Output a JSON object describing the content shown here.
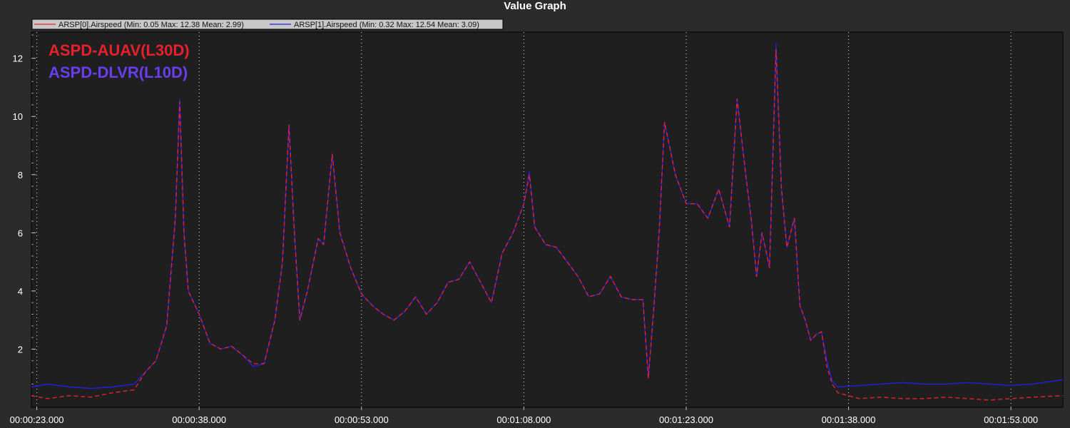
{
  "window": {
    "title": "Value Graph"
  },
  "colors": {
    "background": "#2b2b2b",
    "plot_background": "#1f1f1f",
    "legend_background": "#c8c8c8",
    "axis_text": "#ffffff",
    "grid": "#e6e6e6"
  },
  "annotations": [
    {
      "text": "ASPD-AUAV(L30D)",
      "color": "#e8202e"
    },
    {
      "text": "ASPD-DLVR(L10D)",
      "color": "#6a3df0"
    }
  ],
  "chart_data": {
    "type": "line",
    "title": "Value Graph",
    "xlabel": "",
    "ylabel": "",
    "x_unit": "seconds (elapsed time hh:mm:ss.fff)",
    "xlim": [
      22.5,
      117.8
    ],
    "ylim": [
      0,
      12.9
    ],
    "x_ticks": [
      {
        "value": 23,
        "label": "00:00:23.000"
      },
      {
        "value": 38,
        "label": "00:00:38.000"
      },
      {
        "value": 53,
        "label": "00:00:53.000"
      },
      {
        "value": 68,
        "label": "00:01:08.000"
      },
      {
        "value": 83,
        "label": "00:01:23.000"
      },
      {
        "value": 98,
        "label": "00:01:38.000"
      },
      {
        "value": 113,
        "label": "00:01:53.000"
      }
    ],
    "y_ticks": [
      2,
      4,
      6,
      8,
      10,
      12
    ],
    "grid": true,
    "legend_position": "top-left",
    "series": [
      {
        "name": "ARSP[0].Airspeed",
        "legend_label": "ARSP[0].Airspeed  (Min: 0.05 Max: 12.38 Mean: 2.99)",
        "color": "#e8202e",
        "points": [
          [
            22.5,
            0.4
          ],
          [
            24,
            0.3
          ],
          [
            26,
            0.4
          ],
          [
            28,
            0.35
          ],
          [
            30,
            0.5
          ],
          [
            32,
            0.6
          ],
          [
            33,
            1.2
          ],
          [
            34,
            1.6
          ],
          [
            35,
            2.8
          ],
          [
            35.8,
            6.5
          ],
          [
            36.2,
            10.5
          ],
          [
            36.6,
            6.0
          ],
          [
            37,
            4.0
          ],
          [
            38,
            3.2
          ],
          [
            39,
            2.2
          ],
          [
            40,
            2.0
          ],
          [
            41,
            2.1
          ],
          [
            42,
            1.8
          ],
          [
            43,
            1.5
          ],
          [
            44,
            1.5
          ],
          [
            45,
            3.0
          ],
          [
            45.7,
            5.0
          ],
          [
            46.3,
            9.7
          ],
          [
            46.8,
            6.0
          ],
          [
            47.3,
            3.0
          ],
          [
            48,
            4.0
          ],
          [
            49,
            5.8
          ],
          [
            49.5,
            5.6
          ],
          [
            50.3,
            8.7
          ],
          [
            51,
            6.0
          ],
          [
            52,
            4.8
          ],
          [
            53,
            3.9
          ],
          [
            54,
            3.5
          ],
          [
            55,
            3.2
          ],
          [
            56,
            3.0
          ],
          [
            57,
            3.3
          ],
          [
            58,
            3.8
          ],
          [
            59,
            3.2
          ],
          [
            60,
            3.6
          ],
          [
            61,
            4.3
          ],
          [
            62,
            4.4
          ],
          [
            63,
            5.0
          ],
          [
            64,
            4.3
          ],
          [
            65,
            3.6
          ],
          [
            66,
            5.3
          ],
          [
            67,
            6.0
          ],
          [
            68,
            7.0
          ],
          [
            68.5,
            8.0
          ],
          [
            69,
            6.2
          ],
          [
            70,
            5.6
          ],
          [
            71,
            5.5
          ],
          [
            72,
            5.0
          ],
          [
            73,
            4.5
          ],
          [
            74,
            3.8
          ],
          [
            75,
            3.9
          ],
          [
            76,
            4.5
          ],
          [
            77,
            3.8
          ],
          [
            78,
            3.7
          ],
          [
            79,
            3.7
          ],
          [
            79.5,
            1.0
          ],
          [
            80,
            3.4
          ],
          [
            80.5,
            6.0
          ],
          [
            81,
            9.8
          ],
          [
            82,
            8.0
          ],
          [
            83,
            7.0
          ],
          [
            84,
            7.0
          ],
          [
            85,
            6.5
          ],
          [
            86,
            7.5
          ],
          [
            87,
            6.2
          ],
          [
            87.7,
            10.6
          ],
          [
            88.5,
            8.0
          ],
          [
            89,
            6.5
          ],
          [
            89.5,
            4.5
          ],
          [
            90,
            6.0
          ],
          [
            90.7,
            4.8
          ],
          [
            91.3,
            12.3
          ],
          [
            91.8,
            7.5
          ],
          [
            92.3,
            5.5
          ],
          [
            93,
            6.5
          ],
          [
            93.5,
            3.5
          ],
          [
            94,
            3.0
          ],
          [
            94.5,
            2.3
          ],
          [
            95,
            2.5
          ],
          [
            95.5,
            2.6
          ],
          [
            96,
            1.4
          ],
          [
            96.5,
            0.8
          ],
          [
            97,
            0.5
          ],
          [
            99,
            0.3
          ],
          [
            101,
            0.35
          ],
          [
            103,
            0.3
          ],
          [
            105,
            0.3
          ],
          [
            107,
            0.35
          ],
          [
            109,
            0.3
          ],
          [
            111,
            0.25
          ],
          [
            113,
            0.3
          ],
          [
            115,
            0.35
          ],
          [
            117.8,
            0.4
          ]
        ]
      },
      {
        "name": "ARSP[1].Airspeed",
        "legend_label": "ARSP[1].Airspeed  (Min: 0.32 Max: 12.54 Mean: 3.09)",
        "color": "#2020e0",
        "points": [
          [
            22.5,
            0.7
          ],
          [
            24,
            0.8
          ],
          [
            26,
            0.7
          ],
          [
            28,
            0.65
          ],
          [
            30,
            0.7
          ],
          [
            32,
            0.8
          ],
          [
            33,
            1.2
          ],
          [
            34,
            1.6
          ],
          [
            35,
            2.8
          ],
          [
            35.8,
            6.5
          ],
          [
            36.2,
            10.6
          ],
          [
            36.6,
            6.0
          ],
          [
            37,
            4.0
          ],
          [
            38,
            3.2
          ],
          [
            39,
            2.2
          ],
          [
            40,
            2.0
          ],
          [
            41,
            2.1
          ],
          [
            42,
            1.8
          ],
          [
            43,
            1.4
          ],
          [
            44,
            1.5
          ],
          [
            45,
            3.0
          ],
          [
            45.7,
            5.0
          ],
          [
            46.3,
            9.7
          ],
          [
            46.8,
            6.0
          ],
          [
            47.3,
            3.0
          ],
          [
            48,
            4.0
          ],
          [
            49,
            5.8
          ],
          [
            49.5,
            5.6
          ],
          [
            50.3,
            8.7
          ],
          [
            51,
            6.0
          ],
          [
            52,
            4.8
          ],
          [
            53,
            3.9
          ],
          [
            54,
            3.5
          ],
          [
            55,
            3.2
          ],
          [
            56,
            3.0
          ],
          [
            57,
            3.3
          ],
          [
            58,
            3.8
          ],
          [
            59,
            3.2
          ],
          [
            60,
            3.6
          ],
          [
            61,
            4.3
          ],
          [
            62,
            4.4
          ],
          [
            63,
            5.0
          ],
          [
            64,
            4.3
          ],
          [
            65,
            3.6
          ],
          [
            66,
            5.3
          ],
          [
            67,
            6.0
          ],
          [
            68,
            7.0
          ],
          [
            68.5,
            8.1
          ],
          [
            69,
            6.2
          ],
          [
            70,
            5.6
          ],
          [
            71,
            5.5
          ],
          [
            72,
            5.0
          ],
          [
            73,
            4.5
          ],
          [
            74,
            3.8
          ],
          [
            75,
            3.9
          ],
          [
            76,
            4.5
          ],
          [
            77,
            3.8
          ],
          [
            78,
            3.7
          ],
          [
            79,
            3.7
          ],
          [
            79.5,
            1.0
          ],
          [
            80,
            3.4
          ],
          [
            80.5,
            6.0
          ],
          [
            81,
            9.8
          ],
          [
            82,
            8.0
          ],
          [
            83,
            7.0
          ],
          [
            84,
            7.0
          ],
          [
            85,
            6.5
          ],
          [
            86,
            7.5
          ],
          [
            87,
            6.2
          ],
          [
            87.7,
            10.6
          ],
          [
            88.5,
            8.0
          ],
          [
            89,
            6.5
          ],
          [
            89.5,
            4.5
          ],
          [
            90,
            6.0
          ],
          [
            90.7,
            4.8
          ],
          [
            91.3,
            12.5
          ],
          [
            91.8,
            7.5
          ],
          [
            92.3,
            5.5
          ],
          [
            93,
            6.5
          ],
          [
            93.5,
            3.5
          ],
          [
            94,
            3.0
          ],
          [
            94.5,
            2.3
          ],
          [
            95,
            2.5
          ],
          [
            95.5,
            2.6
          ],
          [
            96,
            1.6
          ],
          [
            96.5,
            0.9
          ],
          [
            97,
            0.7
          ],
          [
            99,
            0.75
          ],
          [
            101,
            0.8
          ],
          [
            103,
            0.85
          ],
          [
            105,
            0.8
          ],
          [
            107,
            0.8
          ],
          [
            109,
            0.85
          ],
          [
            111,
            0.8
          ],
          [
            113,
            0.75
          ],
          [
            115,
            0.8
          ],
          [
            117.8,
            0.95
          ]
        ]
      }
    ]
  }
}
